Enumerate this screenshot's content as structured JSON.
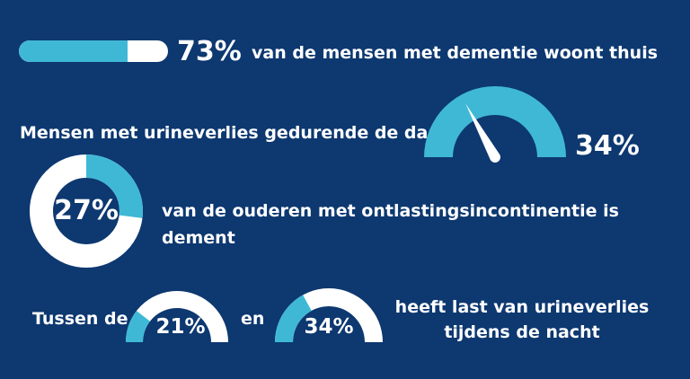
{
  "colors": {
    "background": "#0d3870",
    "accent": "#3fb8d6",
    "track": "#ffffff",
    "text": "#ffffff"
  },
  "chart_data": [
    {
      "type": "progress",
      "value": 73,
      "label": "73%",
      "text": "van de mensen met dementie woont thuis"
    },
    {
      "type": "gauge",
      "value": 34,
      "label": "34%",
      "text": "Mensen met urineverlies gedurende de dag"
    },
    {
      "type": "pie",
      "value": 27,
      "label": "27%",
      "text": "van de ouderen met ontlastingsincontinentie is dement"
    },
    {
      "type": "gauge",
      "value": 21,
      "label": "21%",
      "prefix": "Tussen de"
    },
    {
      "type": "gauge",
      "value": 34,
      "label": "34%",
      "middle": "en",
      "suffix_lines": [
        "heeft last van urineverlies",
        "tijdens de nacht"
      ]
    }
  ]
}
